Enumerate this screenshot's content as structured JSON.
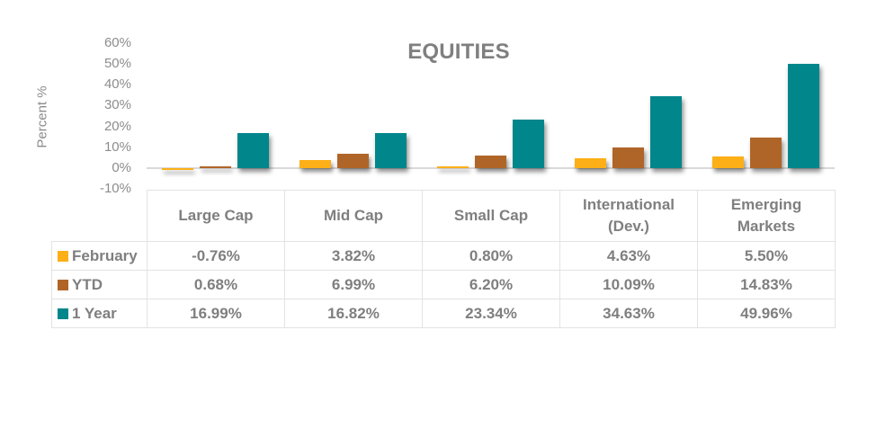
{
  "chart_data": {
    "type": "bar",
    "title": "EQUITIES",
    "xlabel": "",
    "ylabel": "Percent %",
    "ylim": [
      -10,
      60
    ],
    "yticks": [
      "60%",
      "50%",
      "40%",
      "30%",
      "20%",
      "10%",
      "0%",
      "-10%"
    ],
    "grid": false,
    "legend_position": "data-table",
    "categories": [
      "Large Cap",
      "Mid Cap",
      "Small Cap",
      "International (Dev.)",
      "Emerging Markets"
    ],
    "category_lines": [
      [
        "Large Cap"
      ],
      [
        "Mid Cap"
      ],
      [
        "Small Cap"
      ],
      [
        "International",
        "(Dev.)"
      ],
      [
        "Emerging",
        "Markets"
      ]
    ],
    "series": [
      {
        "name": "February",
        "color": "#fcaf17",
        "values": [
          -0.76,
          3.82,
          0.8,
          4.63,
          5.5
        ],
        "labels": [
          "-0.76%",
          "3.82%",
          "0.80%",
          "4.63%",
          "5.50%"
        ]
      },
      {
        "name": "YTD",
        "color": "#b06528",
        "values": [
          0.68,
          6.99,
          6.2,
          10.09,
          14.83
        ],
        "labels": [
          "0.68%",
          "6.99%",
          "6.20%",
          "10.09%",
          "14.83%"
        ]
      },
      {
        "name": "1 Year",
        "color": "#00868b",
        "values": [
          16.99,
          16.82,
          23.34,
          34.63,
          49.96
        ],
        "labels": [
          "16.99%",
          "16.82%",
          "23.34%",
          "34.63%",
          "49.96%"
        ]
      }
    ]
  }
}
